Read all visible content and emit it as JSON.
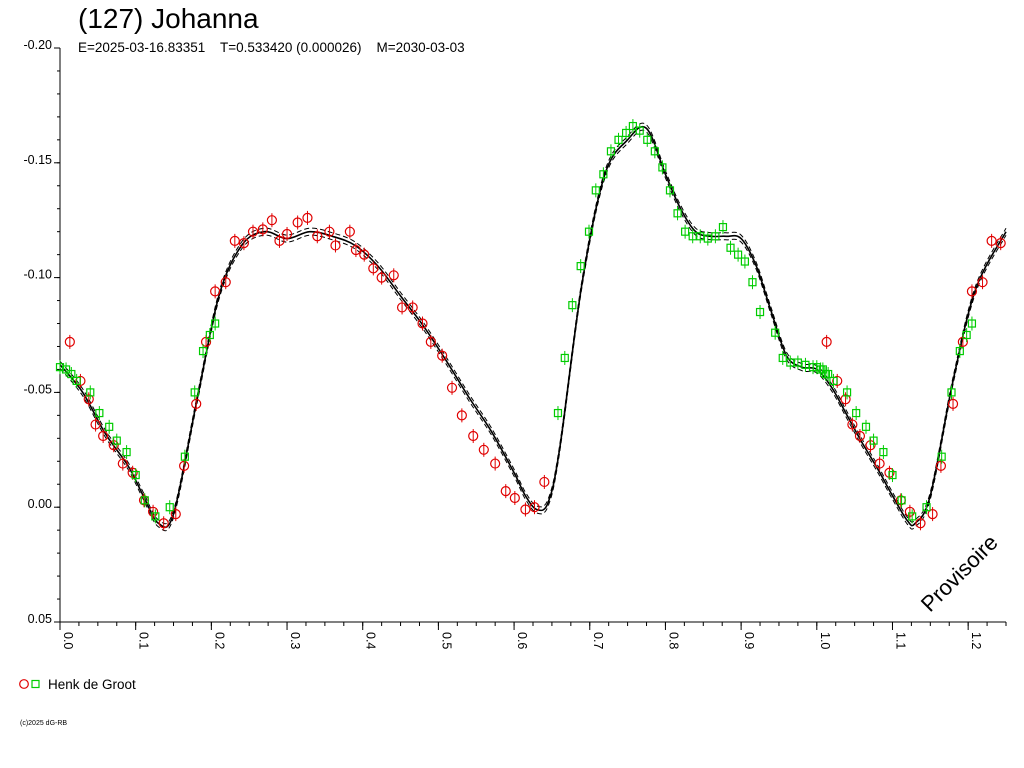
{
  "chart_data": {
    "type": "scatter",
    "title": "(127) Johanna",
    "subtitle": "E=2025-03-16.83351    T=0.533420 (0.000026)    M=2030-03-03",
    "xlim": [
      0.0,
      1.25
    ],
    "ylim": [
      -0.2,
      0.05
    ],
    "y_inverted": true,
    "x_ticks": [
      "0.0",
      "0.1",
      "0.2",
      "0.3",
      "0.4",
      "0.5",
      "0.6",
      "0.7",
      "0.8",
      "0.9",
      "1.0",
      "1.1",
      "1.2"
    ],
    "y_ticks": [
      "-0.20",
      "-0.15",
      "-0.10",
      "-0.05",
      "0.00",
      "0.05"
    ],
    "grid": false,
    "watermark": "Provisoire",
    "legend": {
      "placement": "bottom-left",
      "label": "Henk de Groot"
    },
    "copyright": "(c)2025 dG-RB",
    "colors": {
      "series_red": "#e00000",
      "series_green": "#00cc00",
      "fit": "#000000"
    },
    "fit_curve": {
      "x": [
        0.0,
        0.03,
        0.06,
        0.09,
        0.11,
        0.13,
        0.15,
        0.18,
        0.21,
        0.24,
        0.27,
        0.3,
        0.33,
        0.36,
        0.39,
        0.42,
        0.45,
        0.48,
        0.51,
        0.54,
        0.57,
        0.6,
        0.615,
        0.63,
        0.645,
        0.66,
        0.69,
        0.72,
        0.75,
        0.775,
        0.8,
        0.82,
        0.84,
        0.86,
        0.88,
        0.9,
        0.92,
        0.94,
        0.96,
        0.98,
        1.0,
        1.02,
        1.04,
        1.06,
        1.08,
        1.1,
        1.12,
        1.13,
        1.15,
        1.18,
        1.21,
        1.25
      ],
      "y": [
        -0.062,
        -0.05,
        -0.032,
        -0.018,
        -0.005,
        0.007,
        0.003,
        -0.045,
        -0.092,
        -0.114,
        -0.12,
        -0.117,
        -0.12,
        -0.118,
        -0.114,
        -0.105,
        -0.092,
        -0.079,
        -0.064,
        -0.048,
        -0.033,
        -0.015,
        -0.005,
        0.001,
        -0.002,
        -0.025,
        -0.098,
        -0.145,
        -0.16,
        -0.165,
        -0.145,
        -0.13,
        -0.12,
        -0.118,
        -0.118,
        -0.117,
        -0.105,
        -0.085,
        -0.066,
        -0.061,
        -0.06,
        -0.052,
        -0.04,
        -0.028,
        -0.017,
        -0.005,
        0.006,
        0.007,
        -0.005,
        -0.055,
        -0.095,
        -0.12
      ]
    },
    "series": [
      {
        "name": "Henk de Groot",
        "marker": "circle",
        "color": "#e00000",
        "x": [
          0.013,
          0.027,
          0.038,
          0.047,
          0.057,
          0.071,
          0.083,
          0.096,
          0.111,
          0.123,
          0.137,
          0.153,
          0.164,
          0.18,
          0.193,
          0.205,
          0.219,
          0.231,
          0.243,
          0.255,
          0.268,
          0.28,
          0.29,
          0.3,
          0.314,
          0.327,
          0.34,
          0.356,
          0.364,
          0.383,
          0.391,
          0.402,
          0.414,
          0.425,
          0.441,
          0.452,
          0.466,
          0.479,
          0.49,
          0.505,
          0.518,
          0.531,
          0.546,
          0.56,
          0.575,
          0.589,
          0.601,
          0.615,
          0.627,
          0.64
        ],
        "y": [
          -0.072,
          -0.055,
          -0.047,
          -0.036,
          -0.031,
          -0.027,
          -0.019,
          -0.015,
          -0.003,
          0.002,
          0.007,
          0.003,
          -0.018,
          -0.045,
          -0.072,
          -0.094,
          -0.098,
          -0.116,
          -0.115,
          -0.12,
          -0.121,
          -0.125,
          -0.116,
          -0.119,
          -0.124,
          -0.126,
          -0.118,
          -0.12,
          -0.114,
          -0.12,
          -0.112,
          -0.11,
          -0.104,
          -0.1,
          -0.101,
          -0.087,
          -0.087,
          -0.08,
          -0.072,
          -0.066,
          -0.052,
          -0.04,
          -0.031,
          -0.025,
          -0.019,
          -0.007,
          -0.004,
          0.001,
          0.0,
          -0.011
        ]
      },
      {
        "name": "Henk de Groot",
        "marker": "square",
        "color": "#00cc00",
        "x": [
          0.0,
          0.008,
          0.015,
          0.022,
          0.04,
          0.052,
          0.065,
          0.075,
          0.088,
          0.1,
          0.112,
          0.126,
          0.145,
          0.165,
          0.178,
          0.189,
          0.198,
          0.205,
          0.658,
          0.667,
          0.677,
          0.688,
          0.699,
          0.708,
          0.718,
          0.728,
          0.738,
          0.748,
          0.757,
          0.766,
          0.776,
          0.786,
          0.796,
          0.806,
          0.816,
          0.826,
          0.836,
          0.846,
          0.856,
          0.866,
          0.876,
          0.886,
          0.896,
          0.905,
          0.915,
          0.925,
          0.945,
          0.955,
          0.965,
          0.975,
          0.985,
          0.995,
          1.005,
          1.012
        ],
        "y": [
          -0.061,
          -0.06,
          -0.058,
          -0.055,
          -0.05,
          -0.041,
          -0.035,
          -0.029,
          -0.024,
          -0.014,
          -0.003,
          0.004,
          0.0,
          -0.022,
          -0.05,
          -0.068,
          -0.075,
          -0.08,
          -0.041,
          -0.065,
          -0.088,
          -0.105,
          -0.12,
          -0.138,
          -0.145,
          -0.155,
          -0.16,
          -0.163,
          -0.166,
          -0.164,
          -0.16,
          -0.155,
          -0.148,
          -0.138,
          -0.128,
          -0.12,
          -0.118,
          -0.118,
          -0.117,
          -0.118,
          -0.122,
          -0.113,
          -0.11,
          -0.107,
          -0.098,
          -0.085,
          -0.076,
          -0.065,
          -0.063,
          -0.063,
          -0.062,
          -0.061,
          -0.06,
          -0.058
        ]
      }
    ]
  }
}
